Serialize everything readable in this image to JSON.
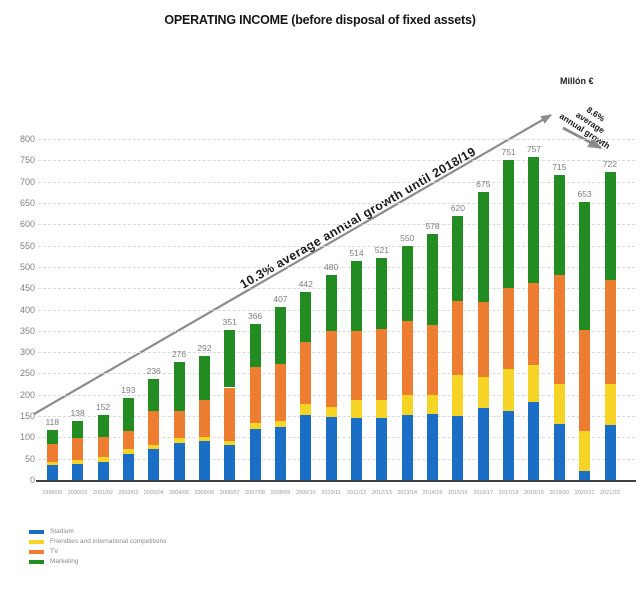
{
  "title": "OPERATING INCOME (before disposal of fixed assets)",
  "unit_label": "Millón €",
  "annotations": {
    "main_growth": "10.3% average annual growth until 2018/19",
    "secondary_growth": [
      "8.6%",
      "average",
      "annual growth"
    ]
  },
  "chart_data": {
    "type": "bar",
    "stacked": true,
    "title": "OPERATING INCOME (before disposal of fixed assets)",
    "unit": "Millón €",
    "ylim": [
      0,
      800
    ],
    "ytick_step": 50,
    "grid": "horizontal-dashed",
    "legend_position": "bottom-left",
    "categories": [
      "1999/00",
      "2000/01",
      "2001/02",
      "2002/03",
      "2003/04",
      "2004/05",
      "2005/06",
      "2006/07",
      "2007/08",
      "2008/09",
      "2009/10",
      "2010/11",
      "2011/12",
      "2012/13",
      "2013/14",
      "2014/15",
      "2015/16",
      "2016/17",
      "2017/18",
      "2018/19",
      "2019/20",
      "2020/21",
      "2021/22"
    ],
    "totals": [
      118,
      138,
      152,
      193,
      236,
      276,
      292,
      351,
      366,
      407,
      442,
      480,
      514,
      521,
      550,
      578,
      620,
      675,
      751,
      757,
      715,
      653,
      722
    ],
    "series": [
      {
        "name": "Stadium",
        "color": "#1a6ec6",
        "values": [
          35,
          38,
          43,
          60,
          72,
          86,
          91,
          82,
          120,
          124,
          152,
          148,
          146,
          146,
          153,
          155,
          149,
          168,
          163,
          183,
          131,
          20,
          128
        ]
      },
      {
        "name": "Friendlies and international competitions",
        "color": "#f6d426",
        "values": [
          8,
          8,
          10,
          12,
          10,
          12,
          10,
          10,
          14,
          14,
          27,
          23,
          42,
          42,
          47,
          45,
          97,
          74,
          97,
          86,
          95,
          94,
          97
        ]
      },
      {
        "name": "TV",
        "color": "#ed7d31",
        "values": [
          42,
          52,
          48,
          42,
          79,
          65,
          86,
          125,
          132,
          135,
          145,
          178,
          162,
          167,
          173,
          163,
          175,
          175,
          191,
          194,
          254,
          238,
          245
        ]
      },
      {
        "name": "Marketing",
        "color": "#228B22",
        "values": [
          33,
          40,
          51,
          79,
          75,
          113,
          105,
          134,
          100,
          134,
          118,
          131,
          164,
          166,
          177,
          215,
          199,
          258,
          300,
          294,
          235,
          301,
          252
        ]
      }
    ]
  },
  "colors": {
    "stadium": "#1a6ec6",
    "friendlies": "#f6d426",
    "tv": "#ed7d31",
    "marketing": "#228B22",
    "arrow": "#8c8c8c",
    "gridline": "#d9d9d9",
    "axis": "#3f3f3f",
    "tick_text": "#808080"
  }
}
